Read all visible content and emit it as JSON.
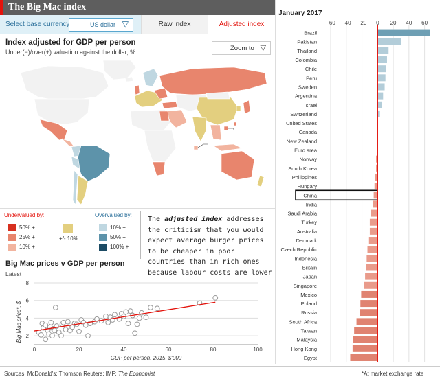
{
  "header": {
    "title": "The Big Mac index"
  },
  "controls": {
    "currency_label": "Select base currency:",
    "currency_value": "US dollar",
    "tab_raw": "Raw index",
    "tab_adjusted": "Adjusted index"
  },
  "map": {
    "title": "Index adjusted for GDP per person",
    "subtitle": "Under(−)/over(+) valuation against the dollar, %",
    "zoom_label": "Zoom to",
    "colors": {
      "under50": "#d7301f",
      "under25": "#e8856d",
      "under10": "#f2b49f",
      "neutral": "#e3cf7f",
      "over10": "#bfd7e1",
      "over50": "#5d93aa",
      "over100": "#1c4b64",
      "nodata": "#f2f2f2"
    }
  },
  "legend": {
    "undervalued_title": "Undervalued by:",
    "overvalued_title": "Overvalued by:",
    "under": [
      "50% +",
      "25% +",
      "10% +"
    ],
    "neutral": "+/- 10%",
    "over": [
      "10% +",
      "50% +",
      "100% +"
    ]
  },
  "note": {
    "prefix": "The ",
    "emphasis": "adjusted index",
    "suffix": " addresses the criticism that you would expect average burger prices to be cheaper in poor countries than in rich ones because labour costs are lower"
  },
  "chart_data": [
    {
      "type": "bar",
      "orientation": "horizontal",
      "title": "January 2017",
      "xlim": [
        -60,
        70
      ],
      "xticks": [
        -60,
        -40,
        -20,
        0,
        20,
        40,
        60
      ],
      "categories": [
        "Brazil",
        "Pakistan",
        "Thailand",
        "Colombia",
        "Chile",
        "Peru",
        "Sweden",
        "Argentina",
        "Israel",
        "Switzerland",
        "United States",
        "Canada",
        "New Zealand",
        "Euro area",
        "Norway",
        "South Korea",
        "Philippines",
        "Hungary",
        "China",
        "India",
        "Saudi Arabia",
        "Turkey",
        "Australia",
        "Denmark",
        "Czech Republic",
        "Indonesia",
        "Britain",
        "Japan",
        "Singapore",
        "Mexico",
        "Poland",
        "Russia",
        "South Africa",
        "Taiwan",
        "Malaysia",
        "Hong Kong",
        "Egypt"
      ],
      "values": [
        67,
        30,
        14,
        12,
        11,
        10,
        9,
        7,
        5,
        3,
        0,
        0,
        -1,
        -1,
        -2,
        -2,
        -3,
        -4,
        -5,
        -6,
        -9,
        -10,
        -10,
        -11,
        -13,
        -14,
        -15,
        -16,
        -17,
        -21,
        -22,
        -23,
        -27,
        -30,
        -31,
        -32,
        -35
      ],
      "highlight": "China",
      "colors": {
        "positive": "#b3cdd9",
        "top": "#6e9fb4",
        "negative": "#e99b8b",
        "strong_negative": "#e08371",
        "zero_line": "#e3120b"
      }
    },
    {
      "type": "scatter",
      "title": "Big Mac prices v GDP per person",
      "subtitle": "Latest",
      "xlabel": "GDP per person, 2015, $'000",
      "ylabel": "Big Mac price*, $",
      "xlim": [
        0,
        100
      ],
      "ylim": [
        1,
        8
      ],
      "xticks": [
        0,
        20,
        40,
        60,
        80,
        100
      ],
      "yticks": [
        2,
        4,
        6,
        8
      ],
      "points": [
        [
          2,
          2.4
        ],
        [
          3,
          2.1
        ],
        [
          3.5,
          3.4
        ],
        [
          4,
          2.9
        ],
        [
          5,
          1.6
        ],
        [
          5,
          3.2
        ],
        [
          6,
          2.6
        ],
        [
          6.5,
          2.2
        ],
        [
          7,
          3.0
        ],
        [
          7.5,
          3.5
        ],
        [
          8,
          2.0
        ],
        [
          8.5,
          2.8
        ],
        [
          9,
          2.6
        ],
        [
          9.5,
          5.2
        ],
        [
          10,
          3.1
        ],
        [
          11,
          2.4
        ],
        [
          12,
          2.0
        ],
        [
          12.5,
          3.3
        ],
        [
          13,
          3.5
        ],
        [
          14,
          2.7
        ],
        [
          15,
          3.6
        ],
        [
          16,
          2.6
        ],
        [
          16.5,
          3.2
        ],
        [
          17,
          3.0
        ],
        [
          18,
          3.4
        ],
        [
          19,
          3.3
        ],
        [
          20,
          2.5
        ],
        [
          21,
          3.8
        ],
        [
          22,
          3.5
        ],
        [
          23,
          3.2
        ],
        [
          24,
          2.0
        ],
        [
          25,
          3.4
        ],
        [
          27,
          3.6
        ],
        [
          28,
          3.9
        ],
        [
          30,
          3.7
        ],
        [
          32,
          4.2
        ],
        [
          33,
          3.5
        ],
        [
          34,
          4.1
        ],
        [
          35,
          3.8
        ],
        [
          36,
          4.4
        ],
        [
          38,
          3.9
        ],
        [
          39,
          4.5
        ],
        [
          40,
          4.2
        ],
        [
          41,
          4.7
        ],
        [
          42,
          3.4
        ],
        [
          43,
          4.8
        ],
        [
          44,
          4.3
        ],
        [
          45,
          2.3
        ],
        [
          46,
          3.3
        ],
        [
          47,
          4.0
        ],
        [
          48,
          4.6
        ],
        [
          50,
          4.1
        ],
        [
          52,
          5.2
        ],
        [
          55,
          5.1
        ],
        [
          74,
          5.7
        ],
        [
          81,
          6.3
        ]
      ],
      "trend": [
        [
          0,
          2.55
        ],
        [
          81,
          5.8
        ]
      ],
      "colors": {
        "marker": "#9a9a9a",
        "trend": "#e3120b",
        "grid": "#dddddd"
      }
    }
  ],
  "footer": {
    "sources_prefix": "Sources: McDonald's; Thomson Reuters; IMF; ",
    "sources_emphasis": "The Economist",
    "footnote": "*At market exchange rate"
  }
}
